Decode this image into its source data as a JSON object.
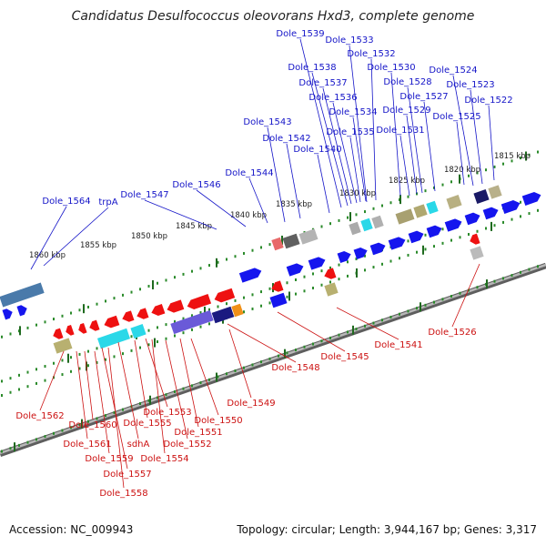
{
  "title": "Candidatus Desulfococcus oleovorans Hxd3, complete genome",
  "accession": "Accession: NC_009943",
  "summary": "Topology: circular; Length: 3,944,167 bp; Genes: 3,317",
  "scale_labels": [
    "1815 kbp",
    "1820 kbp",
    "1825 kbp",
    "1830 kbp",
    "1835 kbp",
    "1840 kbp",
    "1845 kbp",
    "1850 kbp",
    "1855 kbp",
    "1860 kbp"
  ],
  "colors": {
    "forward_label": "#1515c8",
    "reverse_label": "#cc1111",
    "forward_gene": "#1515ee",
    "reverse_gene": "#ee1111",
    "backbone": "#8a8a8a",
    "tick": "#2a8a2a"
  },
  "forward_labels": [
    "Dole_1539",
    "Dole_1533",
    "Dole_1532",
    "Dole_1538",
    "Dole_1530",
    "Dole_1524",
    "Dole_1537",
    "Dole_1528",
    "Dole_1523",
    "Dole_1536",
    "Dole_1527",
    "Dole_1522",
    "Dole_1534",
    "Dole_1529",
    "Dole_1525",
    "Dole_1543",
    "Dole_1531",
    "Dole_1542",
    "Dole_1535",
    "Dole_1540",
    "Dole_1544",
    "Dole_1546",
    "Dole_1547",
    "Dole_1564",
    "trpA"
  ],
  "reverse_labels": [
    "Dole_1526",
    "Dole_1541",
    "Dole_1545",
    "Dole_1548",
    "Dole_1549",
    "Dole_1562",
    "Dole_1553",
    "Dole_1550",
    "Dole_1560",
    "Dole_1555",
    "Dole_1551",
    "Dole_1561",
    "sdhA",
    "Dole_1552",
    "Dole_1559",
    "Dole_1554",
    "Dole_1557",
    "Dole_1558"
  ]
}
